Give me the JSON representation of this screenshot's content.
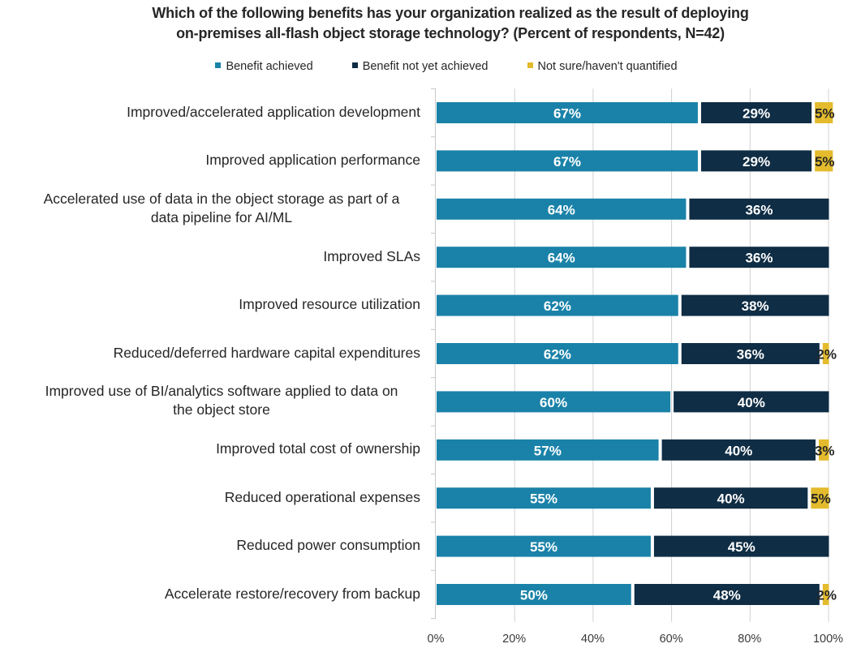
{
  "chart_data": {
    "type": "bar",
    "orientation": "horizontal",
    "stacked": true,
    "title": "Which of the following benefits has your organization realized as the result of deploying on-premises all-flash object storage technology? (Percent of respondents, N=42)",
    "title_lines": [
      "Which of the following benefits has your organization realized as the result of deploying",
      "on-premises all-flash object storage technology? (Percent of respondents, N=42)"
    ],
    "xlabel": "",
    "ylabel": "",
    "xlim": [
      0,
      100
    ],
    "x_ticks": [
      "0%",
      "20%",
      "40%",
      "60%",
      "80%",
      "100%"
    ],
    "grid": true,
    "legend_position": "top",
    "categories": [
      "Improved/accelerated application development",
      "Improved application performance",
      "Accelerated use of data in the object storage as part of a data pipeline for AI/ML",
      "Improved SLAs",
      "Improved resource utilization",
      "Reduced/deferred hardware capital expenditures",
      "Improved use of BI/analytics software applied to data on the object store",
      "Improved total cost of ownership",
      "Reduced operational expenses",
      "Reduced power consumption",
      "Accelerate restore/recovery from backup"
    ],
    "category_lines": [
      [
        "Improved/accelerated application development"
      ],
      [
        "Improved application performance"
      ],
      [
        "Accelerated use of data in the object storage as part of a",
        "data pipeline for AI/ML"
      ],
      [
        "Improved SLAs"
      ],
      [
        "Improved resource utilization"
      ],
      [
        "Reduced/deferred hardware capital expenditures"
      ],
      [
        "Improved use of BI/analytics software applied to data on",
        "the object store"
      ],
      [
        "Improved total cost of ownership"
      ],
      [
        "Reduced operational expenses"
      ],
      [
        "Reduced power consumption"
      ],
      [
        "Accelerate restore/recovery from backup"
      ]
    ],
    "series": [
      {
        "name": "Benefit achieved",
        "color": "#1a82a8",
        "label_color": "#ffffff",
        "values": [
          67,
          67,
          64,
          64,
          62,
          62,
          60,
          57,
          55,
          55,
          50
        ]
      },
      {
        "name": "Benefit not yet achieved",
        "color": "#0f2d44",
        "label_color": "#ffffff",
        "values": [
          29,
          29,
          36,
          36,
          38,
          36,
          40,
          40,
          40,
          45,
          48
        ]
      },
      {
        "name": "Not sure/haven't quantified",
        "color": "#e3bb2d",
        "label_color": "#262626",
        "values": [
          5,
          5,
          0,
          0,
          0,
          2,
          0,
          3,
          5,
          0,
          2
        ]
      }
    ]
  }
}
